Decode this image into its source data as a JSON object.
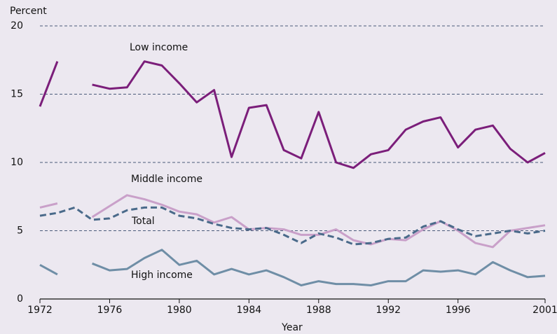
{
  "chart_data": {
    "type": "line",
    "y_axis_label": "Percent",
    "x_axis_label": "Year",
    "x": [
      1972,
      1973,
      1974,
      1975,
      1976,
      1977,
      1978,
      1979,
      1980,
      1981,
      1982,
      1983,
      1984,
      1985,
      1986,
      1987,
      1988,
      1989,
      1990,
      1991,
      1992,
      1993,
      1994,
      1995,
      1996,
      1997,
      1998,
      1999,
      2000,
      2001
    ],
    "xlim": [
      1972,
      2001
    ],
    "xticks": [
      1972,
      1976,
      1980,
      1984,
      1988,
      1992,
      1996,
      2001
    ],
    "ylim": [
      0,
      20
    ],
    "yticks": [
      0,
      5,
      10,
      15,
      20
    ],
    "grid": true,
    "series": [
      {
        "name": "Low income",
        "color": "#7b1e7a",
        "dashed": false,
        "values": [
          14.1,
          17.4,
          null,
          15.7,
          15.4,
          15.5,
          17.4,
          17.1,
          15.8,
          14.4,
          15.3,
          10.4,
          14.0,
          14.2,
          10.9,
          10.3,
          13.7,
          10.0,
          9.6,
          10.6,
          10.9,
          12.4,
          13.0,
          13.3,
          11.1,
          12.4,
          12.7,
          11.0,
          10.0,
          10.7
        ]
      },
      {
        "name": "Middle income",
        "color": "#c9a0c9",
        "dashed": false,
        "values": [
          6.7,
          7.0,
          null,
          6.0,
          6.8,
          7.6,
          7.3,
          6.9,
          6.4,
          6.2,
          5.6,
          6.0,
          5.1,
          5.2,
          5.1,
          4.7,
          4.7,
          5.1,
          4.3,
          4.0,
          4.4,
          4.3,
          5.1,
          5.7,
          5.0,
          4.1,
          3.8,
          5.0,
          5.2,
          5.4
        ]
      },
      {
        "name": "Total",
        "color": "#4a6a8a",
        "dashed": true,
        "values": [
          6.1,
          6.3,
          6.7,
          5.8,
          5.9,
          6.5,
          6.7,
          6.7,
          6.1,
          5.9,
          5.5,
          5.2,
          5.1,
          5.2,
          4.7,
          4.1,
          4.8,
          4.5,
          4.0,
          4.1,
          4.4,
          4.5,
          5.3,
          5.7,
          5.1,
          4.6,
          4.8,
          5.0,
          4.8,
          5.0
        ]
      },
      {
        "name": "High income",
        "color": "#6f8ea6",
        "dashed": false,
        "values": [
          2.5,
          1.8,
          null,
          2.6,
          2.1,
          2.2,
          3.0,
          3.6,
          2.5,
          2.8,
          1.8,
          2.2,
          1.8,
          2.1,
          1.6,
          1.0,
          1.3,
          1.1,
          1.1,
          1.0,
          1.3,
          1.3,
          2.1,
          2.0,
          2.1,
          1.8,
          2.7,
          2.1,
          1.6,
          1.7
        ]
      }
    ]
  }
}
